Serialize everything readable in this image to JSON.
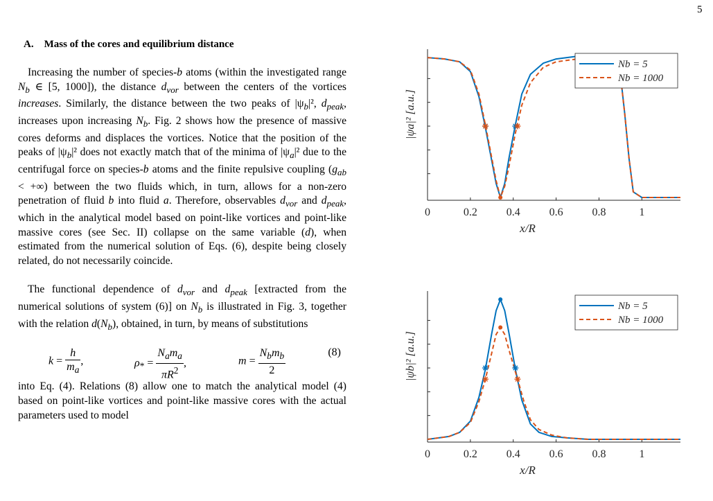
{
  "page_number": "5",
  "section_title": "A. Mass of the cores and equilibrium distance",
  "p1": {
    "a": "Increasing the number of species-",
    "b": " atoms (within the investigated range ",
    "c": " ∈ [5, 1000]), the distance ",
    "d": " between the centers of the vortices ",
    "e": "increases",
    "f": ". Similarly, the distance between the two peaks of |ψ",
    "g": "|², ",
    "h": ", increases upon increasing ",
    "i": ". Fig. 2 shows how the presence of massive cores deforms and displaces the vortices. Notice that the position of the peaks of |ψ",
    "j": "|² does not exactly match that of the minima of |ψ",
    "k": "|² due to the centrifugal force on species-",
    "l": " atoms and the finite repulsive coupling (",
    "m": " < +∞) between the two fluids which, in turn, allows for a non-zero penetration of fluid ",
    "n": " into fluid ",
    "o": ". Therefore, observables ",
    "p": " and ",
    "q": ", which in the analytical model based on point-like vortices and point-like massive cores (see Sec. II) collapse on the same variable (",
    "r": "), when estimated from the numerical solution of Eqs. (6), despite being closely related, do not necessarily coincide."
  },
  "p2": {
    "a": "The functional dependence of ",
    "b": " and ",
    "c": " [extracted from the numerical solutions of system (6)] on ",
    "d": " is illustrated in Fig. 3, together with the relation ",
    "e": "), obtained, in turn, by means of substitutions"
  },
  "p3": "into Eq. (4). Relations (8) allow one to match the analytical model (4) based on point-like vortices and point-like massive cores with the actual parameters used to model",
  "equation_number": "(8)",
  "figures": [
    {
      "chart_data": {
        "type": "line",
        "ylabel": "|ψa|² [a.u.]",
        "xlabel": "x/R",
        "xlim": [
          0,
          1.18
        ],
        "xticks": [
          "0",
          "0.2",
          "0.4",
          "0.6",
          "0.8",
          "1"
        ],
        "legend": "top-right",
        "series": [
          {
            "name": "Nb = 5",
            "style": "solid",
            "color": "#0072BD",
            "x": [
              0,
              0.08,
              0.15,
              0.2,
              0.24,
              0.27,
              0.3,
              0.32,
              0.34,
              0.36,
              0.38,
              0.41,
              0.44,
              0.48,
              0.54,
              0.6,
              0.7,
              0.8,
              0.86,
              0.88,
              0.9,
              0.92,
              0.94,
              0.96,
              1.0,
              1.18
            ],
            "y": [
              1.0,
              0.99,
              0.97,
              0.9,
              0.72,
              0.5,
              0.26,
              0.1,
              0.0,
              0.1,
              0.28,
              0.52,
              0.74,
              0.88,
              0.96,
              0.99,
              1.01,
              1.02,
              1.01,
              0.98,
              0.88,
              0.6,
              0.28,
              0.04,
              0,
              0
            ]
          },
          {
            "name": "Nb = 1000",
            "style": "dashed",
            "color": "#D95319",
            "x": [
              0,
              0.08,
              0.15,
              0.2,
              0.24,
              0.27,
              0.3,
              0.32,
              0.34,
              0.36,
              0.38,
              0.41,
              0.44,
              0.48,
              0.54,
              0.6,
              0.7,
              0.8,
              0.86,
              0.88,
              0.9,
              0.92,
              0.94,
              0.96,
              1.0,
              1.18
            ],
            "y": [
              1.0,
              0.99,
              0.97,
              0.91,
              0.74,
              0.52,
              0.28,
              0.12,
              0.0,
              0.08,
              0.22,
              0.46,
              0.66,
              0.82,
              0.93,
              0.97,
              0.99,
              1.0,
              0.99,
              0.97,
              0.87,
              0.6,
              0.28,
              0.04,
              0,
              0
            ]
          }
        ],
        "markers": [
          {
            "x": 0.27,
            "y": 0.51,
            "color": "#0072BD",
            "shape": "star"
          },
          {
            "x": 0.27,
            "y": 0.51,
            "color": "#D95319",
            "shape": "star"
          },
          {
            "x": 0.41,
            "y": 0.51,
            "color": "#0072BD",
            "shape": "star"
          },
          {
            "x": 0.42,
            "y": 0.51,
            "color": "#D95319",
            "shape": "star"
          },
          {
            "x": 0.34,
            "y": 0.0,
            "color": "#D95319",
            "shape": "dot"
          }
        ]
      }
    },
    {
      "chart_data": {
        "type": "line",
        "ylabel": "|ψb|² [a.u.]",
        "xlabel": "x/R",
        "xlim": [
          0,
          1.18
        ],
        "xticks": [
          "0",
          "0.2",
          "0.4",
          "0.6",
          "0.8",
          "1"
        ],
        "legend": "top-right",
        "series": [
          {
            "name": "Nb = 5",
            "style": "solid",
            "color": "#0072BD",
            "x": [
              0,
              0.1,
              0.15,
              0.2,
              0.24,
              0.27,
              0.3,
              0.32,
              0.34,
              0.36,
              0.38,
              0.41,
              0.44,
              0.48,
              0.52,
              0.58,
              0.65,
              0.75,
              0.9,
              1.18
            ],
            "y": [
              0.0,
              0.02,
              0.05,
              0.13,
              0.3,
              0.5,
              0.76,
              0.92,
              1.0,
              0.92,
              0.76,
              0.5,
              0.28,
              0.11,
              0.05,
              0.02,
              0.01,
              0.0,
              0.0,
              0.0
            ]
          },
          {
            "name": "Nb = 1000",
            "style": "dashed",
            "color": "#D95319",
            "x": [
              0,
              0.1,
              0.15,
              0.2,
              0.24,
              0.27,
              0.3,
              0.32,
              0.34,
              0.36,
              0.38,
              0.42,
              0.45,
              0.48,
              0.52,
              0.58,
              0.65,
              0.75,
              0.9,
              1.18
            ],
            "y": [
              0.0,
              0.02,
              0.05,
              0.12,
              0.27,
              0.43,
              0.62,
              0.75,
              0.8,
              0.75,
              0.64,
              0.43,
              0.27,
              0.14,
              0.07,
              0.03,
              0.01,
              0.0,
              0.0,
              0.0
            ]
          }
        ],
        "markers": [
          {
            "x": 0.27,
            "y": 0.51,
            "color": "#0072BD",
            "shape": "star"
          },
          {
            "x": 0.41,
            "y": 0.51,
            "color": "#0072BD",
            "shape": "star"
          },
          {
            "x": 0.27,
            "y": 0.43,
            "color": "#D95319",
            "shape": "star"
          },
          {
            "x": 0.42,
            "y": 0.43,
            "color": "#D95319",
            "shape": "star"
          },
          {
            "x": 0.34,
            "y": 1.0,
            "color": "#0072BD",
            "shape": "dot"
          },
          {
            "x": 0.34,
            "y": 0.8,
            "color": "#D95319",
            "shape": "dot"
          }
        ]
      }
    }
  ]
}
